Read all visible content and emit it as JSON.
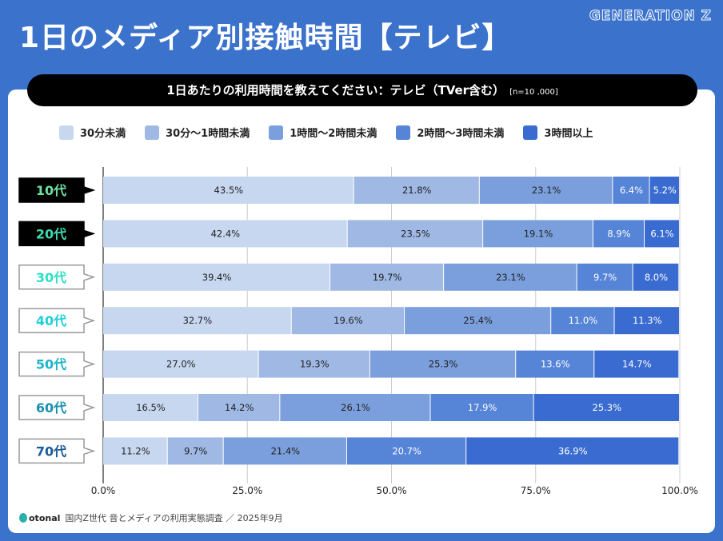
{
  "title": "1日のメディア別接触時間【テレビ】",
  "brand": "GENERATION Z",
  "question": "1日あたりの利用時間を教えてください：テレビ（TVer含む）",
  "sample": "[n=10 ,000]",
  "footer": {
    "logo": "otonal",
    "source": "国内Z世代 音とメディアの利用実態調査 ／ 2025年9月"
  },
  "chart_data": {
    "type": "bar",
    "stacked": true,
    "orientation": "horizontal",
    "categories": [
      "10代",
      "20代",
      "30代",
      "40代",
      "50代",
      "60代",
      "70代"
    ],
    "category_colors": [
      "#6fe0a0",
      "#40dcb0",
      "#2ee0c8",
      "#20d0d8",
      "#1ab4c8",
      "#1890b0",
      "#1a5c98"
    ],
    "category_label_style": [
      "dark",
      "dark",
      "light",
      "light",
      "light",
      "light",
      "light"
    ],
    "series": [
      {
        "name": "30分未満",
        "color": "#c7d7f0",
        "values": [
          43.5,
          42.4,
          39.4,
          32.7,
          27.0,
          16.5,
          11.2
        ]
      },
      {
        "name": "30分〜1時間未満",
        "color": "#9fb8e4",
        "values": [
          21.8,
          23.5,
          19.7,
          19.6,
          19.3,
          14.2,
          9.7
        ]
      },
      {
        "name": "1時間〜2時間未満",
        "color": "#7b9fdc",
        "values": [
          23.1,
          19.1,
          23.1,
          25.4,
          25.3,
          26.1,
          21.4
        ]
      },
      {
        "name": "2時間〜3時間未満",
        "color": "#5684d6",
        "values": [
          6.4,
          8.9,
          9.7,
          11.0,
          13.6,
          17.9,
          20.7
        ]
      },
      {
        "name": "3時間以上",
        "color": "#3a6bd0",
        "values": [
          5.2,
          6.1,
          8.0,
          11.3,
          14.7,
          25.3,
          36.9
        ]
      }
    ],
    "xlim": [
      0,
      100
    ],
    "xticks": [
      "0.0%",
      "25.0%",
      "50.0%",
      "75.0%",
      "100.0%"
    ],
    "grid": true,
    "legend": "top"
  }
}
